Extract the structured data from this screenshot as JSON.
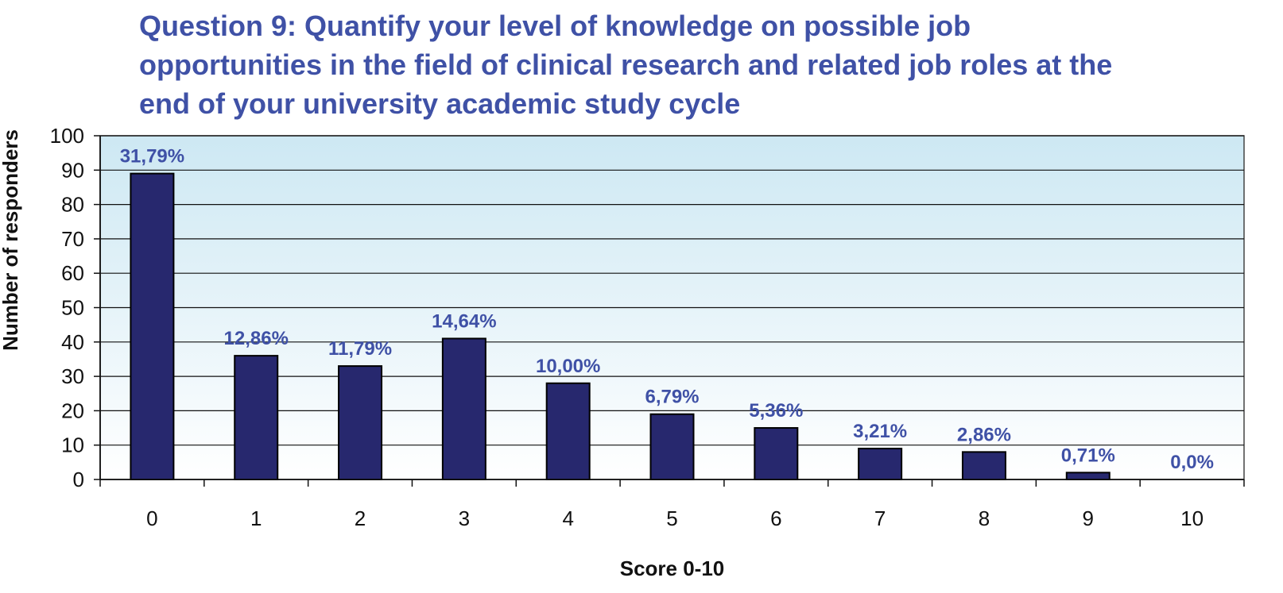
{
  "chart_data": {
    "type": "bar",
    "title_lines": [
      "Question 9: Quantify your level of knowledge on possible job",
      "opportunities in the field of clinical research and related job roles at the",
      "end of your university academic study cycle"
    ],
    "xlabel": "Score 0-10",
    "ylabel": "Number of responders",
    "ylim": [
      0,
      100
    ],
    "yticks": [
      0,
      10,
      20,
      30,
      40,
      50,
      60,
      70,
      80,
      90,
      100
    ],
    "categories": [
      "0",
      "1",
      "2",
      "3",
      "4",
      "5",
      "6",
      "7",
      "8",
      "9",
      "10"
    ],
    "values": [
      89,
      36,
      33,
      41,
      28,
      19,
      15,
      9,
      8,
      2,
      0
    ],
    "data_labels": [
      "31,79%",
      "12,86%",
      "11,79%",
      "14,64%",
      "10,00%",
      "6,79%",
      "5,36%",
      "3,21%",
      "2,86%",
      "0,71%",
      "0,0%"
    ],
    "grid": true,
    "colors": {
      "bar": "#27286e",
      "title": "#3f51a6",
      "data_label": "#3f51a6",
      "plot_top": "#cde8f3",
      "plot_bottom": "#ffffff"
    }
  }
}
